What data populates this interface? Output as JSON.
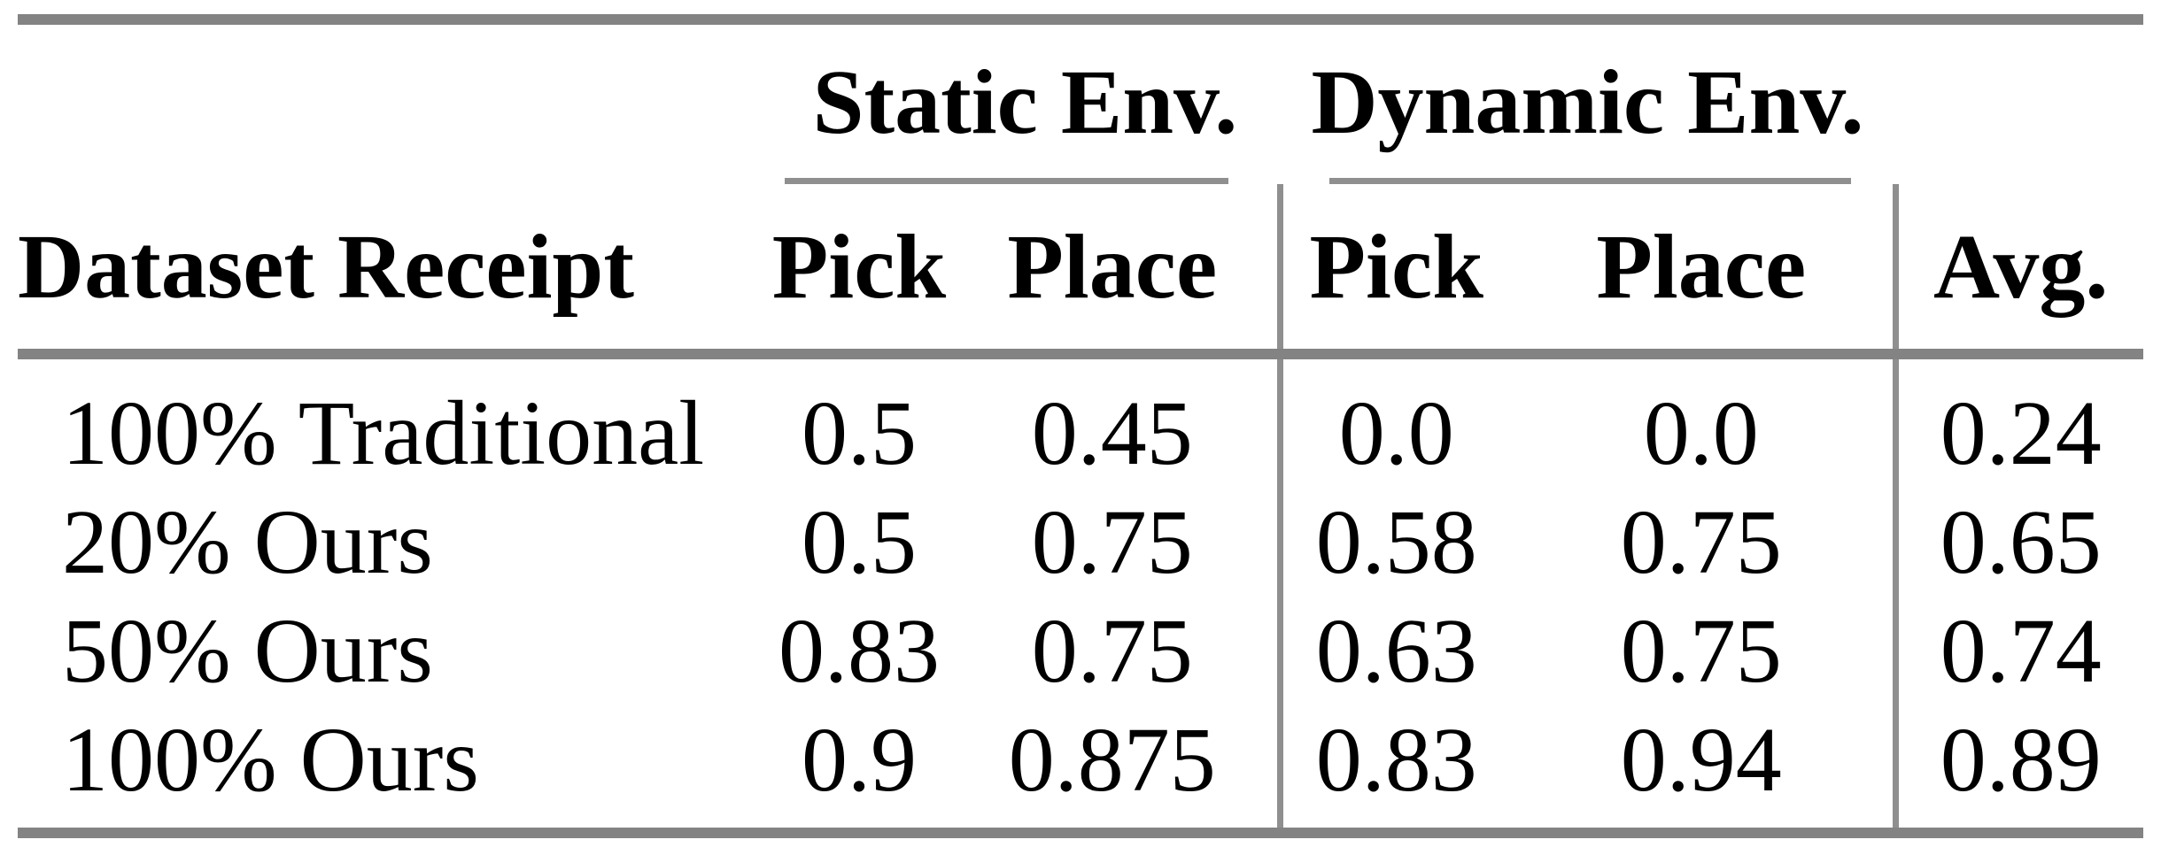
{
  "table": {
    "row_header_label": "Dataset Receipt",
    "groups": [
      {
        "label": "Static Env.",
        "columns": [
          "Pick",
          "Place"
        ]
      },
      {
        "label": "Dynamic Env.",
        "columns": [
          "Pick",
          "Place"
        ]
      }
    ],
    "avg_label": "Avg.",
    "rows": [
      {
        "label": "100% Traditional",
        "values": [
          "0.5",
          "0.45",
          "0.0",
          "0.0",
          "0.24"
        ]
      },
      {
        "label": "20% Ours",
        "values": [
          "0.5",
          "0.75",
          "0.58",
          "0.75",
          "0.65"
        ]
      },
      {
        "label": "50% Ours",
        "values": [
          "0.83",
          "0.75",
          "0.63",
          "0.75",
          "0.74"
        ]
      },
      {
        "label": "100% Ours",
        "values": [
          "0.9",
          "0.875",
          "0.83",
          "0.94",
          "0.89"
        ]
      }
    ]
  },
  "colors": {
    "rule_thick": "#838383",
    "rule_thin": "#8f8f8f",
    "text": "#000000",
    "background": "#ffffff"
  },
  "chart_data": {
    "type": "table",
    "columns": [
      "Dataset Receipt",
      "Static Env. Pick",
      "Static Env. Place",
      "Dynamic Env. Pick",
      "Dynamic Env. Place",
      "Avg."
    ],
    "rows": [
      [
        "100% Traditional",
        0.5,
        0.45,
        0.0,
        0.0,
        0.24
      ],
      [
        "20% Ours",
        0.5,
        0.75,
        0.58,
        0.75,
        0.65
      ],
      [
        "50% Ours",
        0.83,
        0.75,
        0.63,
        0.75,
        0.74
      ],
      [
        "100% Ours",
        0.9,
        0.875,
        0.83,
        0.94,
        0.89
      ]
    ]
  }
}
